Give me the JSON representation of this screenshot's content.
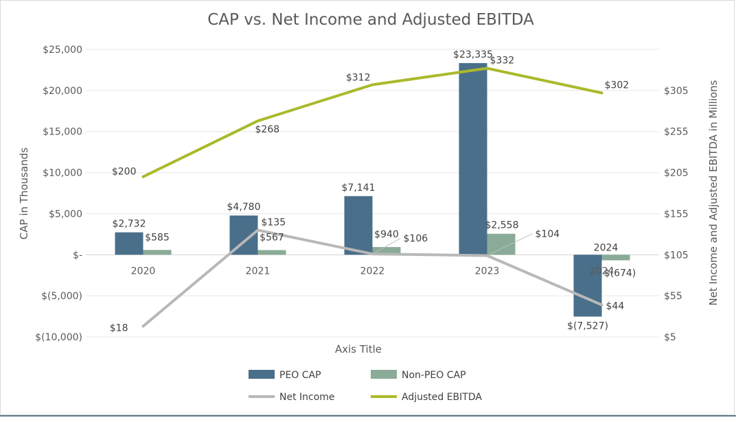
{
  "chart_data": {
    "type": "bar",
    "title": "CAP vs. Net Income and Adjusted EBITDA",
    "xlabel": "Axis Title",
    "ylabel": "CAP in Thousands",
    "y2label": "Net Income and Adjusted EBITDA in Millions",
    "categories": [
      "2020",
      "2021",
      "2022",
      "2023",
      "2024"
    ],
    "ylim": [
      -10000,
      25000
    ],
    "yticks": [
      -10000,
      -5000,
      0,
      5000,
      10000,
      15000,
      20000,
      25000
    ],
    "ytick_labels": [
      "$(10,000)",
      "$(5,000)",
      "$-",
      "$5,000",
      "$10,000",
      "$15,000",
      "$20,000",
      "$25,000"
    ],
    "y2lim": [
      5,
      355
    ],
    "y2ticks": [
      5,
      55,
      105,
      155,
      205,
      255,
      305
    ],
    "y2tick_labels": [
      "$5",
      "$55",
      "$105",
      "$155",
      "$205",
      "$255",
      "$305"
    ],
    "grid": true,
    "legend_position": "bottom",
    "series": [
      {
        "name": "PEO CAP",
        "kind": "bar",
        "axis": "left",
        "color": "#4a6f8a",
        "values": [
          2732,
          4780,
          7141,
          23335,
          -7527
        ],
        "labels": [
          "$2,732",
          "$4,780",
          "$7,141",
          "$23,335",
          "$(7,527)"
        ]
      },
      {
        "name": "Non-PEO CAP",
        "kind": "bar",
        "axis": "left",
        "color": "#8aab97",
        "values": [
          585,
          567,
          940,
          2558,
          -674
        ],
        "labels": [
          "$585",
          "$567",
          "$940",
          "$2,558",
          "$(674)"
        ]
      },
      {
        "name": "Net Income",
        "kind": "line",
        "axis": "right",
        "color": "#b8b8b8",
        "values": [
          18,
          135,
          106,
          104,
          44
        ],
        "labels": [
          "$18",
          "$135",
          "$106",
          "$104",
          "$44"
        ]
      },
      {
        "name": "Adjusted EBITDA",
        "kind": "line",
        "axis": "right",
        "color": "#aab92a",
        "values": [
          200,
          268,
          312,
          332,
          302
        ],
        "labels": [
          "$200",
          "$268",
          "$312",
          "$332",
          "$302"
        ]
      }
    ],
    "annotations": [
      "2024"
    ]
  }
}
